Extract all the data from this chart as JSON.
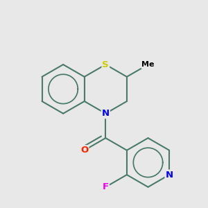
{
  "background_color": "#e8e8e8",
  "bond_color": "#4a7a6a",
  "bond_width": 1.5,
  "atom_colors": {
    "S": "#cccc00",
    "N": "#0000ff",
    "O": "#ff2200",
    "F": "#ee00ee",
    "C": "#000000"
  },
  "font_size": 9.5
}
